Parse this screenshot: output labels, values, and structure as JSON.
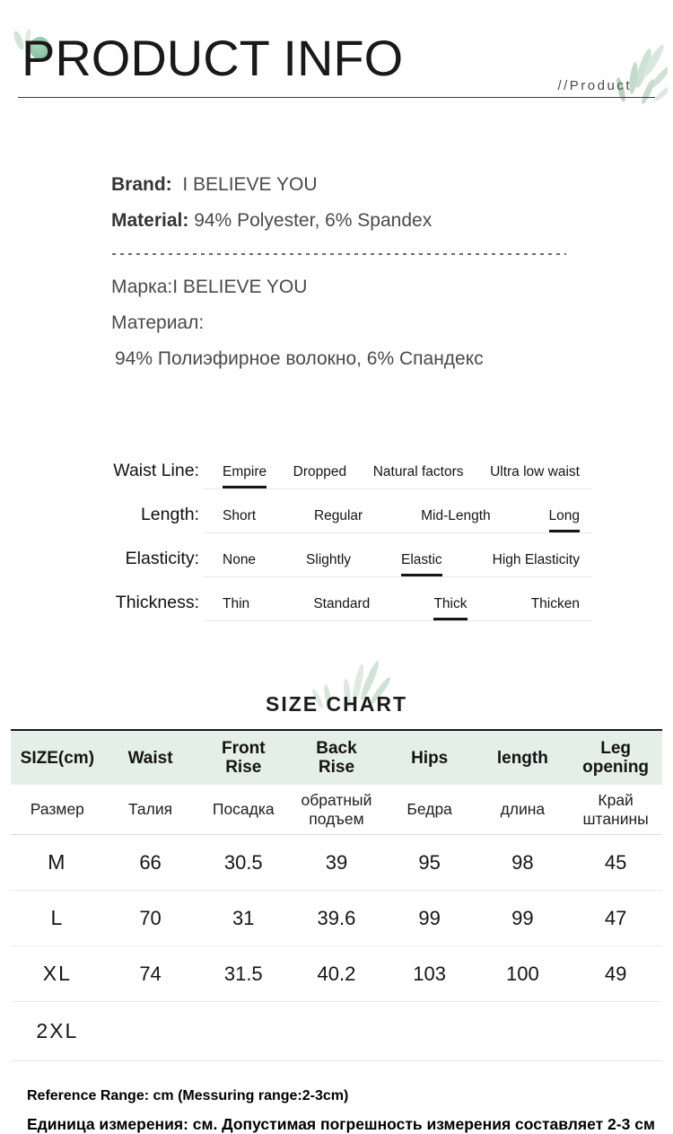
{
  "header": {
    "title": "PRODUCT INFO",
    "tag": "//Product"
  },
  "info_en": {
    "brand_label": "Brand:",
    "brand_value": "I BELIEVE YOU",
    "material_label": "Material:",
    "material_value": "94% Polyester, 6% Spandex"
  },
  "info_ru": {
    "brand_label": "Марка:",
    "brand_value": "I BELIEVE YOU",
    "material_label": "Материал:",
    "material_value": "94% Полиэфирное волокно, 6% Спандекс"
  },
  "attributes": [
    {
      "label": "Waist Line:",
      "options": [
        "Empire",
        "Dropped",
        "Natural factors",
        "Ultra low waist"
      ],
      "selected": 0
    },
    {
      "label": "Length:",
      "options": [
        "Short",
        "Regular",
        "Mid-Length",
        "Long"
      ],
      "selected": 3
    },
    {
      "label": "Elasticity:",
      "options": [
        "None",
        "Slightly",
        "Elastic",
        "High Elasticity"
      ],
      "selected": 2
    },
    {
      "label": "Thickness:",
      "options": [
        "Thin",
        "Standard",
        "Thick",
        "Thicken"
      ],
      "selected": 2
    }
  ],
  "size_chart": {
    "title": "SIZE CHART",
    "columns_en": [
      "SIZE(cm)",
      "Waist",
      "Front\nRise",
      "Back\nRise",
      "Hips",
      "length",
      "Leg\nopening"
    ],
    "columns_ru": [
      "Размер",
      "Талия",
      "Посадка",
      "обратный\nподъем",
      "Бедра",
      "длина",
      "Край\nштанины"
    ],
    "rows": [
      {
        "size": "M",
        "values": [
          "66",
          "30.5",
          "39",
          "95",
          "98",
          "45"
        ]
      },
      {
        "size": "L",
        "values": [
          "70",
          "31",
          "39.6",
          "99",
          "99",
          "47"
        ]
      },
      {
        "size": "XL",
        "values": [
          "74",
          "31.5",
          "40.2",
          "103",
          "100",
          "49"
        ]
      },
      {
        "size": "2XL",
        "values": [
          "",
          "",
          "",
          "",
          "",
          ""
        ]
      }
    ]
  },
  "footer": {
    "reference_en": "Reference Range: cm (Messuring range:2-3cm)",
    "reference_ru": "Единица измерения: см. Допустимая погрешность измерения составляет 2-3 см"
  },
  "colors": {
    "table_header_bg": "#e4efe7",
    "accent_green": "#85c3a4"
  }
}
